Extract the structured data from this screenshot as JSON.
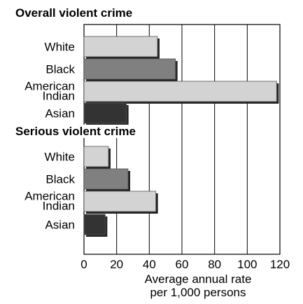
{
  "chart_data": {
    "type": "bar",
    "orientation": "horizontal",
    "xlabel": "Average annual rate per 1,000 persons",
    "xlim": [
      0,
      120
    ],
    "xticks": [
      0,
      20,
      40,
      60,
      80,
      100,
      120
    ],
    "grid": true,
    "legend": "none",
    "panels": [
      {
        "title": "Overall violent crime",
        "categories": [
          "White",
          "Black",
          "American Indian",
          "Asian"
        ],
        "values": [
          45,
          56,
          118,
          26
        ]
      },
      {
        "title": "Serious violent crime",
        "categories": [
          "White",
          "Black",
          "American Indian",
          "Asian"
        ],
        "values": [
          15,
          27,
          44,
          13
        ]
      }
    ],
    "colors": {
      "White": "#d3d3d3",
      "Black": "#808080",
      "American Indian": "#d3d3d3",
      "Asian": "#333333"
    }
  }
}
